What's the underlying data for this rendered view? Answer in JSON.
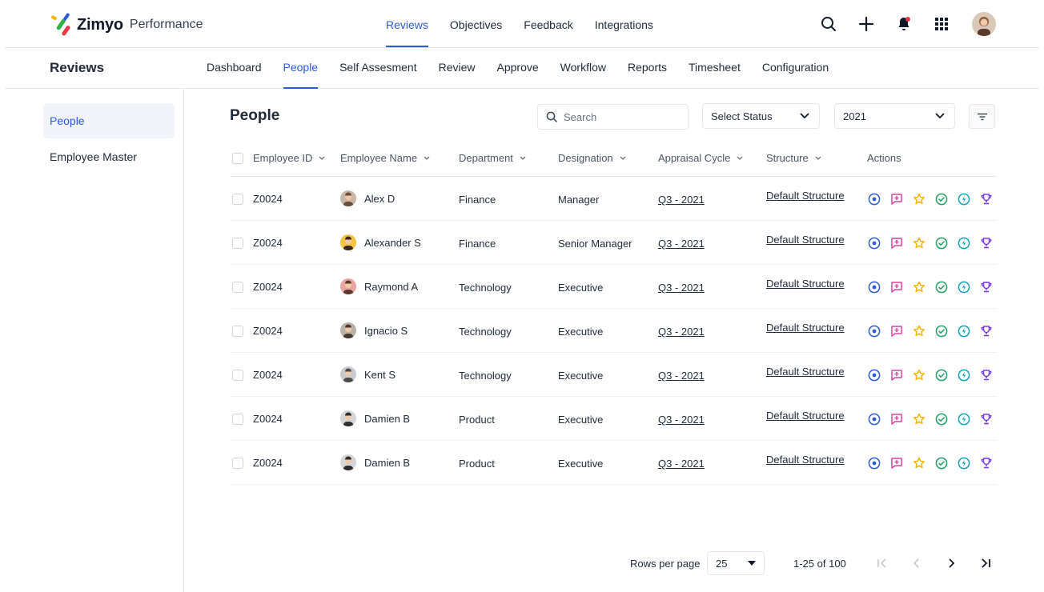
{
  "brand": {
    "name": "Zimyo",
    "product": "Performance"
  },
  "top_nav": [
    {
      "label": "Reviews",
      "active": true
    },
    {
      "label": "Objectives",
      "active": false
    },
    {
      "label": "Feedback",
      "active": false
    },
    {
      "label": "Integrations",
      "active": false
    }
  ],
  "top_actions": [
    "search-icon",
    "plus-icon",
    "bell-icon",
    "apps-grid-icon",
    "avatar"
  ],
  "section_title": "Reviews",
  "sub_nav": [
    {
      "label": "Dashboard",
      "active": false
    },
    {
      "label": "People",
      "active": true
    },
    {
      "label": "Self Assesment",
      "active": false
    },
    {
      "label": "Review",
      "active": false
    },
    {
      "label": "Approve",
      "active": false
    },
    {
      "label": "Workflow",
      "active": false
    },
    {
      "label": "Reports",
      "active": false
    },
    {
      "label": "Timesheet",
      "active": false
    },
    {
      "label": "Configuration",
      "active": false
    }
  ],
  "sidebar": [
    {
      "label": "People",
      "active": true
    },
    {
      "label": "Employee Master",
      "active": false
    }
  ],
  "main": {
    "title": "People",
    "search_placeholder": "Search",
    "status_select": "Select Status",
    "year_select": "2021"
  },
  "table": {
    "columns": [
      "Employee ID",
      "Employee Name",
      "Department",
      "Designation",
      "Appraisal Cycle",
      "Structure",
      "Actions"
    ],
    "rows": [
      {
        "id": "Z0024",
        "name": "Alex D",
        "department": "Finance",
        "designation": "Manager",
        "cycle": "Q3 - 2021",
        "structure": "Default Structure"
      },
      {
        "id": "Z0024",
        "name": "Alexander S",
        "department": "Finance",
        "designation": "Senior Manager",
        "cycle": "Q3 - 2021",
        "structure": "Default Structure"
      },
      {
        "id": "Z0024",
        "name": "Raymond A",
        "department": "Technology",
        "designation": "Executive",
        "cycle": "Q3 - 2021",
        "structure": "Default Structure"
      },
      {
        "id": "Z0024",
        "name": "Ignacio S",
        "department": "Technology",
        "designation": "Executive",
        "cycle": "Q3 - 2021",
        "structure": "Default Structure"
      },
      {
        "id": "Z0024",
        "name": "Kent S",
        "department": "Technology",
        "designation": "Executive",
        "cycle": "Q3 - 2021",
        "structure": "Default Structure"
      },
      {
        "id": "Z0024",
        "name": "Damien B",
        "department": "Product",
        "designation": "Executive",
        "cycle": "Q3 - 2021",
        "structure": "Default Structure"
      },
      {
        "id": "Z0024",
        "name": "Damien B",
        "department": "Product",
        "designation": "Executive",
        "cycle": "Q3 - 2021",
        "structure": "Default Structure"
      }
    ],
    "action_icons": [
      "target-icon",
      "add-comment-icon",
      "star-icon",
      "check-circle-icon",
      "bolt-circle-icon",
      "trophy-icon"
    ]
  },
  "pagination": {
    "rows_per_page_label": "Rows per page",
    "rows_per_page": "25",
    "range": "1-25 of 100"
  },
  "colors": {
    "accent": "#2c5bd8",
    "target": "#2c5bd8",
    "comment": "#d946a8",
    "star": "#f5b400",
    "check": "#22a06b",
    "bolt": "#0ea5b7",
    "trophy": "#7c3aed"
  }
}
